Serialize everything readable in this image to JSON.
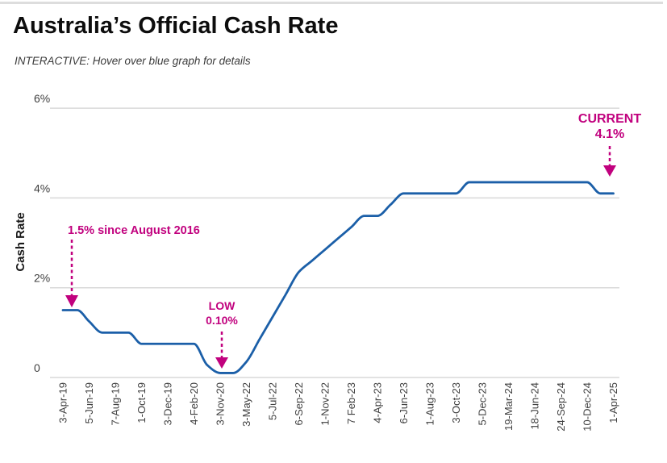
{
  "page": {
    "title": "Australia’s Official Cash Rate",
    "subtitle": "INTERACTIVE: Hover over blue graph for details"
  },
  "chart_data": {
    "type": "line",
    "title": "Australia’s Official Cash Rate",
    "xlabel": "",
    "ylabel": "Cash Rate",
    "ylim": [
      0,
      6
    ],
    "grid": true,
    "legend": false,
    "yticks": [
      {
        "value": 0,
        "label": "0"
      },
      {
        "value": 2,
        "label": "2%"
      },
      {
        "value": 4,
        "label": "4%"
      },
      {
        "value": 6,
        "label": "6%"
      }
    ],
    "x_tick_labels": [
      "3-Apr-19",
      "5-Jun-19",
      "7-Aug-19",
      "1-Oct-19",
      "3-Dec-19",
      "4-Feb-20",
      "3-Nov-20",
      "3-May-22",
      "5-Jul-22",
      "6-Sep-22",
      "1-Nov-22",
      "7 Feb-23",
      "4-Apr-23",
      "6-Jun-23",
      "1-Aug-23",
      "3-Oct-23",
      "5-Dec-23",
      "19-Mar-24",
      "18-Jun-24",
      "24-Sep-24",
      "10-Dec-24",
      "1-Apr-25"
    ],
    "x_unit": "tick index into x_tick_labels (fractional = between labeled dates)",
    "series": [
      {
        "name": "Cash Rate",
        "color": "#1b5fa8",
        "points": [
          [
            0,
            1.5
          ],
          [
            0.55,
            1.5
          ],
          [
            1,
            1.25
          ],
          [
            1.5,
            1.0
          ],
          [
            2.5,
            1.0
          ],
          [
            3,
            0.75
          ],
          [
            5,
            0.75
          ],
          [
            5.5,
            0.28
          ],
          [
            6,
            0.1
          ],
          [
            6.5,
            0.1
          ],
          [
            7,
            0.35
          ],
          [
            7.5,
            0.85
          ],
          [
            8,
            1.35
          ],
          [
            8.5,
            1.85
          ],
          [
            9,
            2.35
          ],
          [
            9.5,
            2.6
          ],
          [
            10,
            2.85
          ],
          [
            10.5,
            3.1
          ],
          [
            11,
            3.35
          ],
          [
            11.5,
            3.6
          ],
          [
            12,
            3.6
          ],
          [
            12.5,
            3.85
          ],
          [
            13,
            4.1
          ],
          [
            15,
            4.1
          ],
          [
            15.5,
            4.35
          ],
          [
            20,
            4.35
          ],
          [
            20.5,
            4.1
          ],
          [
            21,
            4.1
          ]
        ]
      }
    ],
    "annotations": [
      {
        "id": "since-2016",
        "lines": [
          "1.5% since August 2016"
        ],
        "target_label": "3-Apr-19",
        "target_rate": 1.5
      },
      {
        "id": "low",
        "lines": [
          "LOW",
          "0.10%"
        ],
        "target_label": "3-Nov-20",
        "target_rate": 0.1
      },
      {
        "id": "current",
        "lines": [
          "CURRENT",
          "4.1%"
        ],
        "target_label": "1-Apr-25",
        "target_rate": 4.1
      }
    ]
  },
  "colors": {
    "line": "#1b5fa8",
    "annotation": "#c1017e",
    "grid": "#d9d9d9",
    "axis_text": "#3f3f3f",
    "title": "#0d0d0d",
    "subtitle": "#3a3a3a"
  }
}
